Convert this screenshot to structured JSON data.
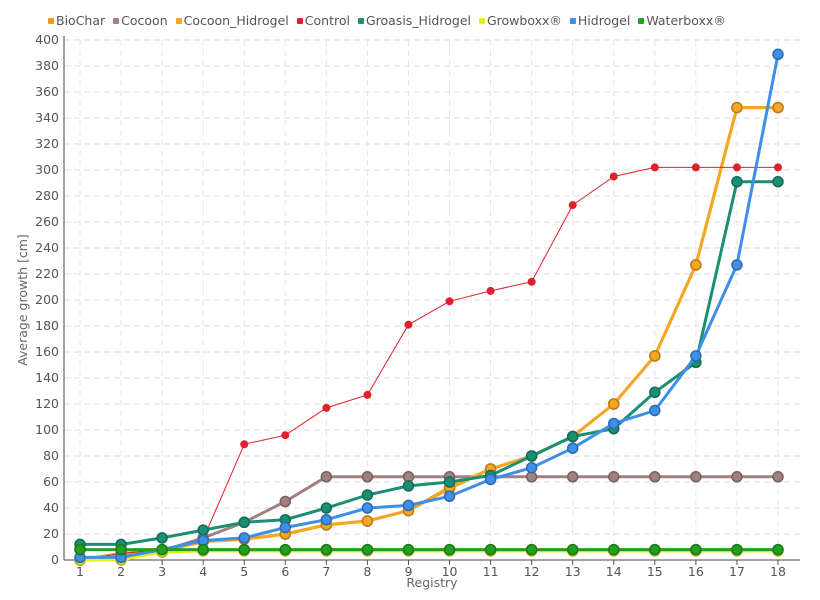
{
  "chart_data": {
    "type": "line",
    "xlabel": "Registry",
    "ylabel": "Average growth [cm]",
    "ylim": [
      0,
      400
    ],
    "y_ticks": [
      0,
      20,
      40,
      60,
      80,
      100,
      120,
      140,
      160,
      180,
      200,
      220,
      240,
      260,
      280,
      300,
      320,
      340,
      360,
      380,
      400
    ],
    "categories": [
      "1",
      "2",
      "3",
      "4",
      "5",
      "6",
      "7",
      "8",
      "9",
      "10",
      "11",
      "12",
      "13",
      "14",
      "15",
      "16",
      "17",
      "18"
    ],
    "grid": true,
    "legend_position": "top-left",
    "series": [
      {
        "name": "BioChar",
        "color": "#f39c12",
        "values": [
          0,
          5,
          7,
          15,
          16,
          20,
          27,
          30,
          38,
          55,
          70,
          80,
          95,
          120,
          157,
          227,
          348,
          348
        ]
      },
      {
        "name": "Cocoon",
        "color": "#a08080",
        "values": [
          0,
          5,
          7,
          17,
          29,
          45,
          64,
          64,
          64,
          64,
          64,
          64,
          64,
          64,
          64,
          64,
          64,
          64
        ]
      },
      {
        "name": "Cocoon_Hidrogel",
        "color": "#f5a623",
        "values": [
          0,
          5,
          7,
          14,
          16,
          20,
          27,
          30,
          38,
          56,
          70,
          80,
          95,
          120,
          157,
          227,
          348,
          348
        ]
      },
      {
        "name": "Control",
        "color": "#e0202a",
        "values": [
          0,
          5,
          8,
          16,
          89,
          96,
          117,
          127,
          181,
          199,
          207,
          214,
          273,
          295,
          302,
          302,
          302,
          302
        ]
      },
      {
        "name": "Groasis_Hidrogel",
        "color": "#1a8f74",
        "values": [
          12,
          12,
          17,
          23,
          29,
          31,
          40,
          50,
          57,
          60,
          65,
          80,
          95,
          101,
          129,
          152,
          291,
          291
        ]
      },
      {
        "name": "Growboxx®",
        "color": "#e8f01a",
        "values": [
          0,
          0,
          6,
          7,
          7,
          7,
          7,
          7,
          7,
          7,
          7,
          7,
          7,
          7,
          7,
          7,
          7,
          7
        ]
      },
      {
        "name": "Hidrogel",
        "color": "#3d8fe8",
        "values": [
          2,
          2,
          8,
          15,
          17,
          25,
          31,
          40,
          42,
          49,
          62,
          71,
          86,
          105,
          115,
          157,
          227,
          389
        ]
      },
      {
        "name": "Waterboxx®",
        "color": "#22a020",
        "values": [
          8,
          8,
          8,
          8,
          8,
          8,
          8,
          8,
          8,
          8,
          8,
          8,
          8,
          8,
          8,
          8,
          8,
          8
        ]
      }
    ]
  }
}
